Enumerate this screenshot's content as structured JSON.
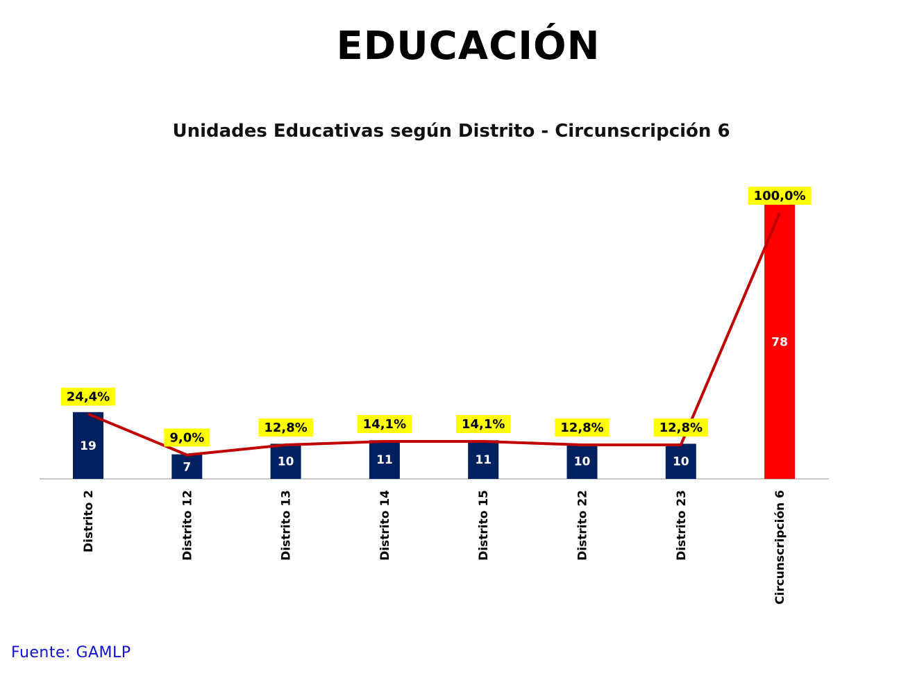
{
  "page": {
    "heading": "EDUCACIÓN",
    "source": "Fuente: GAMLP"
  },
  "chart_data": {
    "type": "bar",
    "title": "Unidades Educativas según Distrito - Circunscripción 6",
    "categories": [
      "Distrito 2",
      "Distrito 12",
      "Distrito 13",
      "Distrito 14",
      "Distrito 15",
      "Distrito 22",
      "Distrito 23",
      "Circunscripción 6"
    ],
    "series": [
      {
        "values": [
          19,
          7,
          10,
          11,
          11,
          10,
          10,
          78
        ],
        "colors": [
          "#002060",
          "#002060",
          "#002060",
          "#002060",
          "#002060",
          "#002060",
          "#002060",
          "#ff0000"
        ]
      },
      {
        "type": "line",
        "values": [
          24.4,
          9.0,
          12.8,
          14.1,
          14.1,
          12.8,
          12.8,
          100.0
        ],
        "labels": [
          "24,4%",
          "9,0%",
          "12,8%",
          "14,1%",
          "14,1%",
          "12,8%",
          "12,8%",
          "100,0%"
        ],
        "color": "#c00000",
        "label_background": "#ffff00"
      }
    ],
    "ylim": [
      0,
      78
    ],
    "grid": false,
    "legend": "none"
  }
}
